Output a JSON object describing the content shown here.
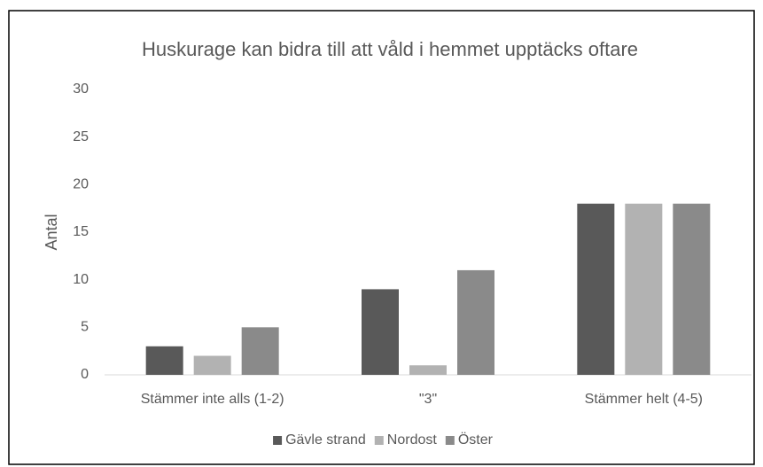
{
  "chart_data": {
    "type": "bar",
    "title": "Huskurage kan bidra till att våld i hemmet upptäcks oftare",
    "y_label": "Antal",
    "categories": [
      "Stämmer inte alls (1-2)",
      "\"3\"",
      "Stämmer helt (4-5)"
    ],
    "series": [
      {
        "name": "Gävle strand",
        "color": "#595959",
        "values": [
          3,
          9,
          18
        ]
      },
      {
        "name": "Nordost",
        "color": "#b2b2b2",
        "values": [
          2,
          1,
          18
        ]
      },
      {
        "name": "Öster",
        "color": "#8a8a8a",
        "values": [
          5,
          11,
          18
        ]
      }
    ],
    "ylim": [
      0,
      30
    ],
    "yticks": [
      0,
      5,
      10,
      15,
      20,
      25,
      30
    ],
    "grid": false,
    "legend": "bottom"
  }
}
